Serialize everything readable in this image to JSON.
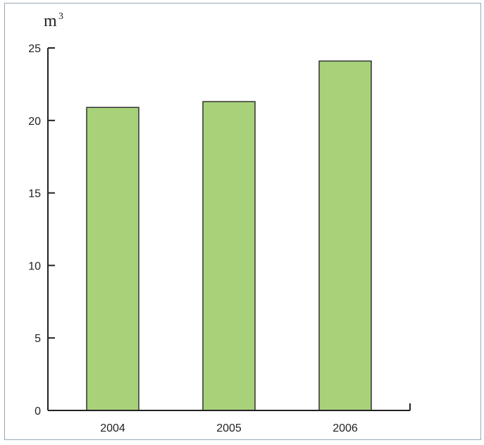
{
  "chart_data": {
    "type": "bar",
    "title": "",
    "xlabel": "",
    "ylabel": "m",
    "ylabel_superscript": "3",
    "categories": [
      "2004",
      "2005",
      "2006"
    ],
    "values": [
      20.9,
      21.3,
      24.1
    ],
    "ylim": [
      0,
      25
    ],
    "yticks": [
      "0",
      "5",
      "10",
      "15",
      "20",
      "25"
    ],
    "grid": false,
    "bar_color": "#a8d27a",
    "bar_edge_color": "#333333"
  }
}
